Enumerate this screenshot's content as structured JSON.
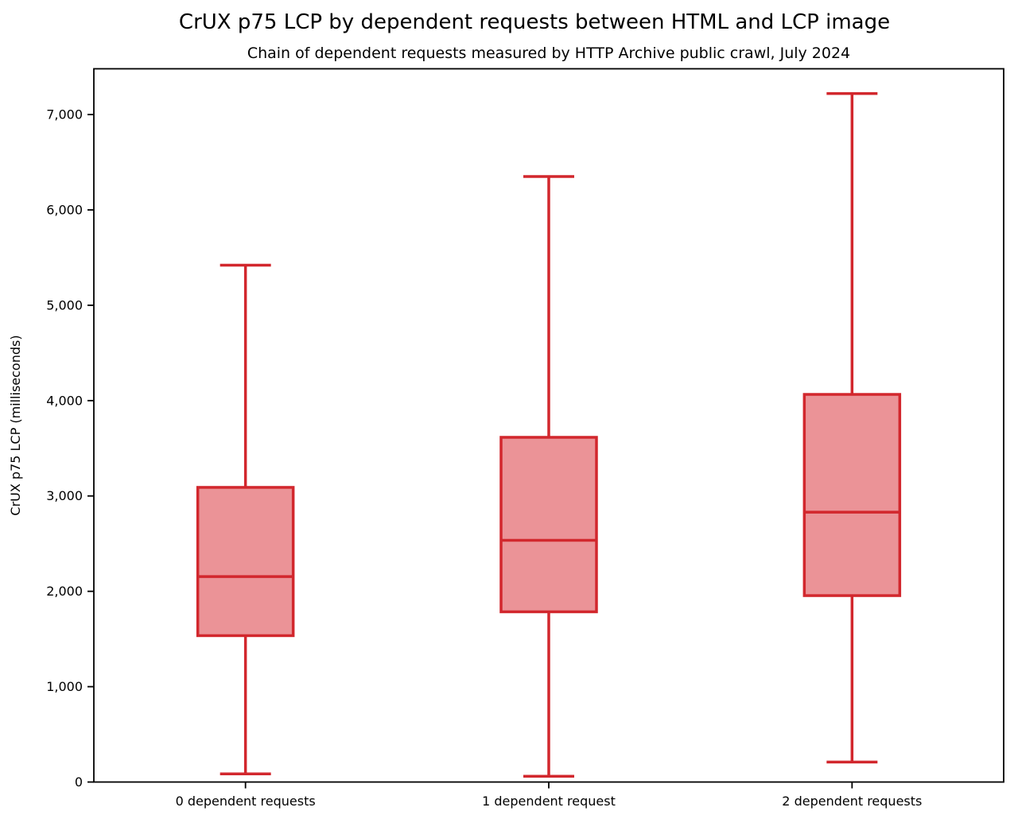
{
  "title": "CrUX p75 LCP by dependent requests between HTML and LCP image",
  "subtitle": "Chain of dependent requests measured by HTTP Archive public crawl, July 2024",
  "chart_data": {
    "type": "boxplot",
    "title": "CrUX p75 LCP by dependent requests between HTML and LCP image",
    "subtitle": "Chain of dependent requests measured by HTTP Archive public crawl, July 2024",
    "xlabel": "",
    "ylabel": "CrUX p75 LCP (milliseconds)",
    "ylim": [
      0,
      7480
    ],
    "grid": false,
    "legend": "none",
    "categories": [
      "0 dependent requests",
      "1 dependent request",
      "2 dependent requests"
    ],
    "yticks": [
      {
        "value": 0,
        "label": "0"
      },
      {
        "value": 1000,
        "label": "1,000"
      },
      {
        "value": 2000,
        "label": "2,000"
      },
      {
        "value": 3000,
        "label": "3,000"
      },
      {
        "value": 4000,
        "label": "4,000"
      },
      {
        "value": 5000,
        "label": "5,000"
      },
      {
        "value": 6000,
        "label": "6,000"
      },
      {
        "value": 7000,
        "label": "7,000"
      }
    ],
    "boxes": [
      {
        "category": "0 dependent requests",
        "whisker_low": 85,
        "q1": 1535,
        "median": 2155,
        "q3": 3090,
        "whisker_high": 5420
      },
      {
        "category": "1 dependent request",
        "whisker_low": 60,
        "q1": 1785,
        "median": 2535,
        "q3": 3615,
        "whisker_high": 6350
      },
      {
        "category": "2 dependent requests",
        "whisker_low": 210,
        "q1": 1955,
        "median": 2830,
        "q3": 4065,
        "whisker_high": 7220
      }
    ],
    "colors": {
      "box_stroke": "#d2272d",
      "box_fill": "#eb9397",
      "axis": "#000000",
      "background": "#ffffff"
    }
  }
}
